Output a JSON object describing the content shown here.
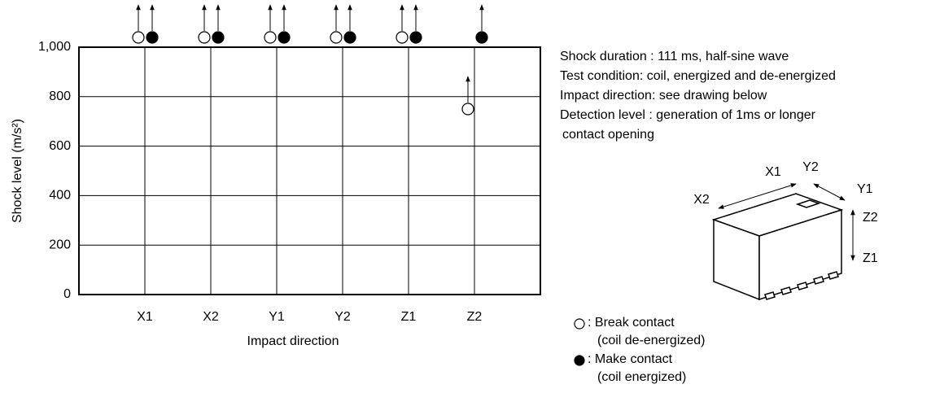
{
  "chart_data": {
    "type": "scatter",
    "x_label": "Impact direction",
    "y_label": "Shock level (m/s²)",
    "categories": [
      "X1",
      "X2",
      "Y1",
      "Y2",
      "Z1",
      "Z2"
    ],
    "ylim": [
      0,
      1000
    ],
    "yticks": [
      0,
      200,
      400,
      600,
      800,
      {
        "value": 1000,
        "label": "1,000"
      }
    ],
    "grid": true,
    "series": [
      {
        "name": ": Break contact",
        "note": "(coil de-energized)",
        "marker": "open",
        "color": "#000000",
        "values": [
          1000,
          1000,
          1000,
          1000,
          1000,
          750
        ]
      },
      {
        "name": ": Make contact",
        "note": "(coil energized)",
        "marker": "filled",
        "color": "#000000",
        "values": [
          1000,
          1000,
          1000,
          1000,
          1000,
          1000
        ]
      }
    ],
    "notes": [
      "Shock duration : 111 ms, half-sine wave",
      "Test condition: coil, energized and de-energized",
      "Impact direction: see drawing below",
      "Detection level : generation of 1ms or longer",
      "contact opening"
    ],
    "diagram": {
      "labels": [
        "X1",
        "X2",
        "Y2",
        "Y1",
        "Z2",
        "Z1"
      ]
    }
  }
}
